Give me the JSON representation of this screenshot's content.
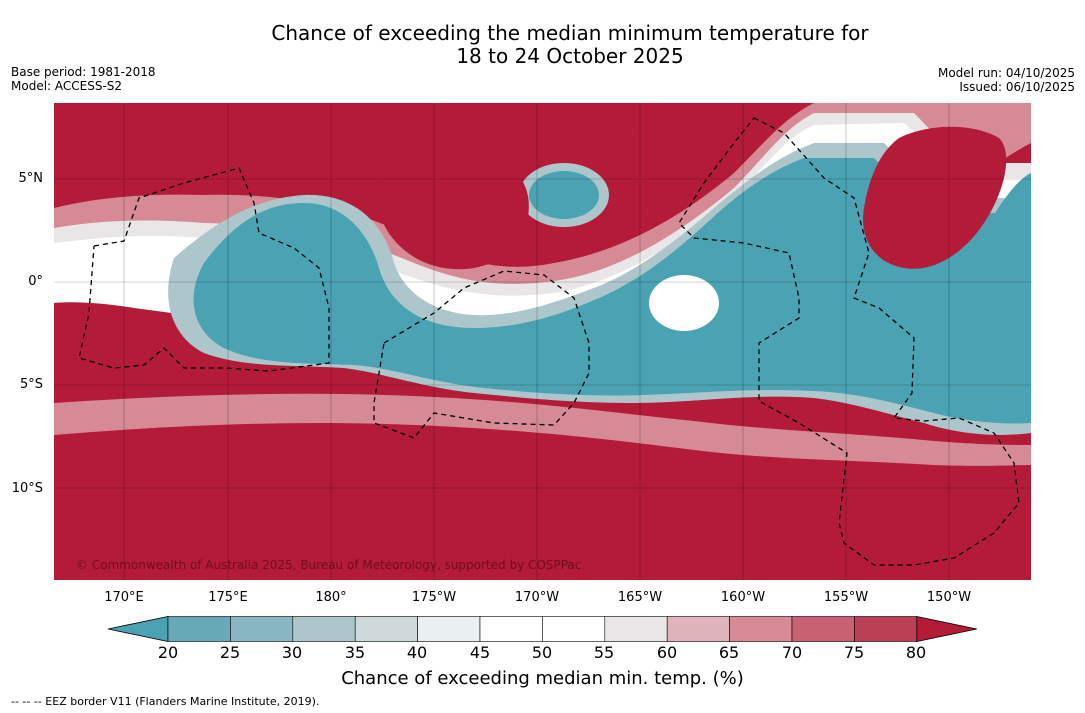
{
  "title": {
    "line1": "Chance of exceeding the median minimum temperature for",
    "line2": "18 to 24 October 2025"
  },
  "meta_left": {
    "base_period": "Base period: 1981-2018",
    "model": "Model: ACCESS-S2"
  },
  "meta_right": {
    "model_run": "Model run: 04/10/2025",
    "issued": "Issued: 06/10/2025"
  },
  "map": {
    "copyright": "© Commonwealth of Australia 2025, Bureau of Meteorology, supported by COSPPac",
    "lat_labels": [
      "5°N",
      "0°",
      "5°S",
      "10°S"
    ],
    "lon_labels": [
      "170°E",
      "175°E",
      "180°",
      "175°W",
      "170°W",
      "165°W",
      "160°W",
      "155°W",
      "150°W"
    ]
  },
  "colorbar": {
    "ticks": [
      "20",
      "25",
      "30",
      "35",
      "40",
      "45",
      "50",
      "55",
      "60",
      "65",
      "70",
      "75",
      "80"
    ],
    "colors": {
      "under": "#4aa2b2",
      "bins": [
        "#68a9b7",
        "#88b6c2",
        "#acc6cc",
        "#cfd9dc",
        "#eaeff1",
        "#ffffff",
        "#ffffff",
        "#e9e6e7",
        "#dfb3ba",
        "#d58a95",
        "#c86273",
        "#bb3f55"
      ],
      "over": "#b31b39"
    },
    "label": "Chance of exceeding median min. temp. (%)"
  },
  "footer": {
    "eez_note": "--  --  -- EEZ border V11 (Flanders Marine Institute, 2019)."
  }
}
